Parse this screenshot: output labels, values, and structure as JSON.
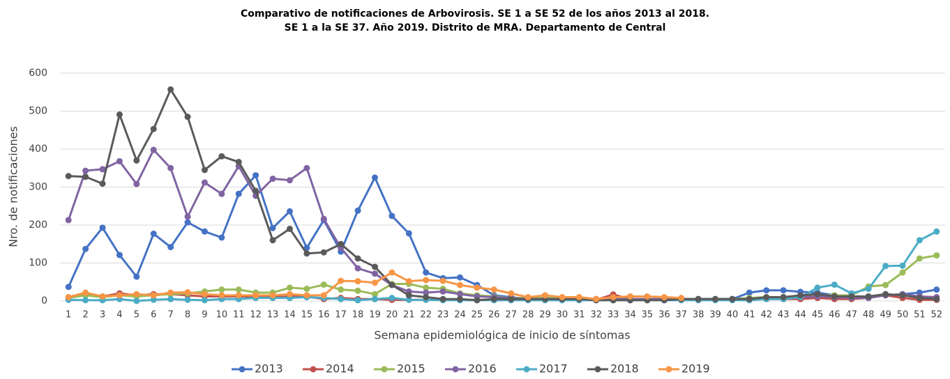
{
  "chart_data": {
    "type": "line",
    "title": "Comparativo de notificaciones de Arbovirosis. SE 1 a SE 52 de los años 2013 al 2018.",
    "subtitle": "SE 1 a la SE 37. Año 2019. Distrito de MRA. Departamento de Central",
    "x_label": "Semana epidemiológica de inicio de síntomas",
    "y_label": "Nro. de notificaciones",
    "categories": [
      "1",
      "2",
      "3",
      "4",
      "5",
      "6",
      "7",
      "8",
      "9",
      "10",
      "11",
      "12",
      "13",
      "14",
      "15",
      "16",
      "17",
      "18",
      "19",
      "20",
      "21",
      "22",
      "23",
      "24",
      "25",
      "26",
      "27",
      "28",
      "29",
      "30",
      "31",
      "32",
      "33",
      "34",
      "35",
      "36",
      "37",
      "38",
      "39",
      "40",
      "41",
      "42",
      "43",
      "44",
      "45",
      "46",
      "47",
      "48",
      "49",
      "50",
      "51",
      "52"
    ],
    "ylim": [
      0,
      600
    ],
    "yticks": [
      0,
      100,
      200,
      300,
      400,
      500,
      600
    ],
    "grid": true,
    "legend": "bottom",
    "series": [
      {
        "name": "2013",
        "color": "#4472c4",
        "values": [
          37,
          137,
          193,
          121,
          64,
          177,
          142,
          207,
          183,
          167,
          282,
          331,
          192,
          236,
          140,
          213,
          130,
          238,
          325,
          224,
          178,
          75,
          60,
          62,
          42,
          15,
          10,
          5,
          5,
          5,
          5,
          5,
          5,
          5,
          5,
          5,
          5,
          5,
          5,
          5,
          22,
          28,
          28,
          24,
          22,
          15,
          12,
          12,
          15,
          18,
          22,
          30
        ]
      },
      {
        "name": "2014",
        "color": "#c0504d",
        "values": [
          8,
          20,
          12,
          20,
          15,
          18,
          18,
          15,
          12,
          12,
          12,
          12,
          10,
          12,
          12,
          5,
          8,
          5,
          5,
          3,
          3,
          3,
          3,
          3,
          3,
          3,
          3,
          3,
          3,
          3,
          3,
          3,
          17,
          5,
          5,
          5,
          5,
          5,
          5,
          5,
          5,
          5,
          5,
          5,
          8,
          5,
          5,
          8,
          15,
          8,
          3,
          3
        ]
      },
      {
        "name": "2015",
        "color": "#9bbb59",
        "values": [
          8,
          15,
          10,
          15,
          12,
          15,
          18,
          20,
          25,
          30,
          30,
          22,
          22,
          35,
          32,
          43,
          30,
          27,
          18,
          45,
          45,
          35,
          32,
          20,
          15,
          12,
          8,
          8,
          8,
          8,
          8,
          5,
          5,
          5,
          5,
          5,
          5,
          5,
          5,
          5,
          8,
          10,
          10,
          12,
          15,
          15,
          15,
          38,
          42,
          75,
          112,
          120
        ]
      },
      {
        "name": "2016",
        "color": "#8064a2",
        "values": [
          213,
          343,
          347,
          368,
          308,
          398,
          350,
          222,
          312,
          282,
          355,
          277,
          322,
          318,
          350,
          216,
          140,
          86,
          72,
          42,
          25,
          22,
          25,
          18,
          12,
          10,
          8,
          5,
          5,
          5,
          5,
          5,
          5,
          5,
          5,
          5,
          5,
          5,
          5,
          5,
          5,
          8,
          10,
          10,
          12,
          10,
          8,
          8,
          15,
          18,
          12,
          10
        ]
      },
      {
        "name": "2017",
        "color": "#4bacc6",
        "values": [
          3,
          2,
          2,
          5,
          0,
          3,
          5,
          3,
          2,
          5,
          5,
          8,
          8,
          8,
          10,
          8,
          5,
          2,
          5,
          8,
          3,
          3,
          2,
          2,
          2,
          2,
          2,
          2,
          2,
          2,
          2,
          2,
          2,
          2,
          2,
          2,
          2,
          2,
          2,
          2,
          2,
          5,
          5,
          10,
          35,
          43,
          20,
          32,
          92,
          93,
          160,
          183
        ]
      },
      {
        "name": "2018",
        "color": "#5a5a5a",
        "values": [
          329,
          327,
          309,
          491,
          370,
          453,
          557,
          485,
          345,
          381,
          366,
          290,
          160,
          190,
          125,
          128,
          150,
          112,
          90,
          42,
          15,
          10,
          5,
          5,
          2,
          5,
          5,
          5,
          5,
          5,
          5,
          2,
          2,
          2,
          2,
          2,
          5,
          5,
          5,
          5,
          5,
          10,
          10,
          15,
          18,
          12,
          12,
          12,
          18,
          15,
          8,
          5
        ]
      },
      {
        "name": "2019",
        "color": "#f79646",
        "values": [
          10,
          22,
          12,
          15,
          18,
          15,
          22,
          23,
          18,
          15,
          15,
          15,
          15,
          18,
          15,
          15,
          53,
          52,
          48,
          75,
          52,
          55,
          53,
          42,
          35,
          30,
          20,
          10,
          15,
          10,
          10,
          5,
          10,
          12,
          12,
          10,
          8,
          null,
          null,
          null,
          null,
          null,
          null,
          null,
          null,
          null,
          null,
          null,
          null,
          null,
          null,
          null
        ]
      }
    ]
  }
}
